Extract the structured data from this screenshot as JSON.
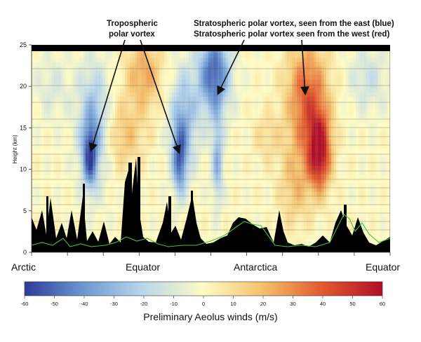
{
  "chart_data": {
    "type": "heatmap",
    "title": "",
    "ylabel": "Height (km)",
    "ylim": [
      0,
      25
    ],
    "y_ticks": [
      "0",
      "5",
      "10",
      "15",
      "20",
      "25"
    ],
    "x_categories": [
      "Arctic",
      "Equator",
      "Antarctica",
      "Equator"
    ],
    "colorbar": {
      "title": "Preliminary Aeolus winds (m/s)",
      "range": [
        -60,
        60
      ],
      "ticks": [
        "-60",
        "-50",
        "-40",
        "-30",
        "-20",
        "-10",
        "0",
        "10",
        "20",
        "30",
        "40",
        "50",
        "60"
      ],
      "colors": [
        "#2c3c98",
        "#6a95cf",
        "#b9d6ec",
        "#fefbc4",
        "#f4c36f",
        "#e35a2e",
        "#b10f2a"
      ]
    },
    "features": [
      {
        "name": "Tropospheric polar vortex (north)",
        "wind": -38,
        "height_km": 11.5
      },
      {
        "name": "Tropospheric polar vortex (south)",
        "wind": -35,
        "height_km": 11.5
      },
      {
        "name": "Stratospheric polar vortex, seen from the east",
        "wind": -48,
        "height_km": 22
      },
      {
        "name": "Stratospheric polar vortex, seen from the west",
        "wind": 55,
        "height_km": 12
      }
    ],
    "annotations": {
      "tropo_line1": "Tropospheric",
      "tropo_line2": "polar vortex",
      "strato_line1": "Stratospheric polar vortex, seen from the east (blue)",
      "strato_line2": "Stratospheric polar vortex seen from the west (red)"
    }
  }
}
